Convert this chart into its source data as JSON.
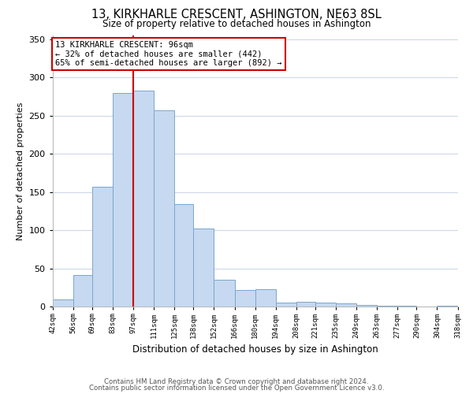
{
  "title": "13, KIRKHARLE CRESCENT, ASHINGTON, NE63 8SL",
  "subtitle": "Size of property relative to detached houses in Ashington",
  "xlabel": "Distribution of detached houses by size in Ashington",
  "ylabel": "Number of detached properties",
  "bar_edges": [
    42,
    56,
    69,
    83,
    97,
    111,
    125,
    138,
    152,
    166,
    180,
    194,
    208,
    221,
    235,
    249,
    263,
    277,
    290,
    304,
    318
  ],
  "bar_heights": [
    10,
    42,
    157,
    280,
    283,
    257,
    134,
    103,
    36,
    22,
    23,
    6,
    7,
    6,
    5,
    3,
    2,
    2,
    1,
    2
  ],
  "bar_color": "#c6d9f0",
  "bar_edge_color": "#7aa6cc",
  "property_line_x": 97,
  "property_line_color": "#cc0000",
  "annotation_text": "13 KIRKHARLE CRESCENT: 96sqm\n← 32% of detached houses are smaller (442)\n65% of semi-detached houses are larger (892) →",
  "annotation_box_edgecolor": "#cc0000",
  "ylim": [
    0,
    355
  ],
  "yticks": [
    0,
    50,
    100,
    150,
    200,
    250,
    300,
    350
  ],
  "footer1": "Contains HM Land Registry data © Crown copyright and database right 2024.",
  "footer2": "Contains public sector information licensed under the Open Government Licence v3.0.",
  "bg_color": "#ffffff",
  "grid_color": "#ccd9e8"
}
